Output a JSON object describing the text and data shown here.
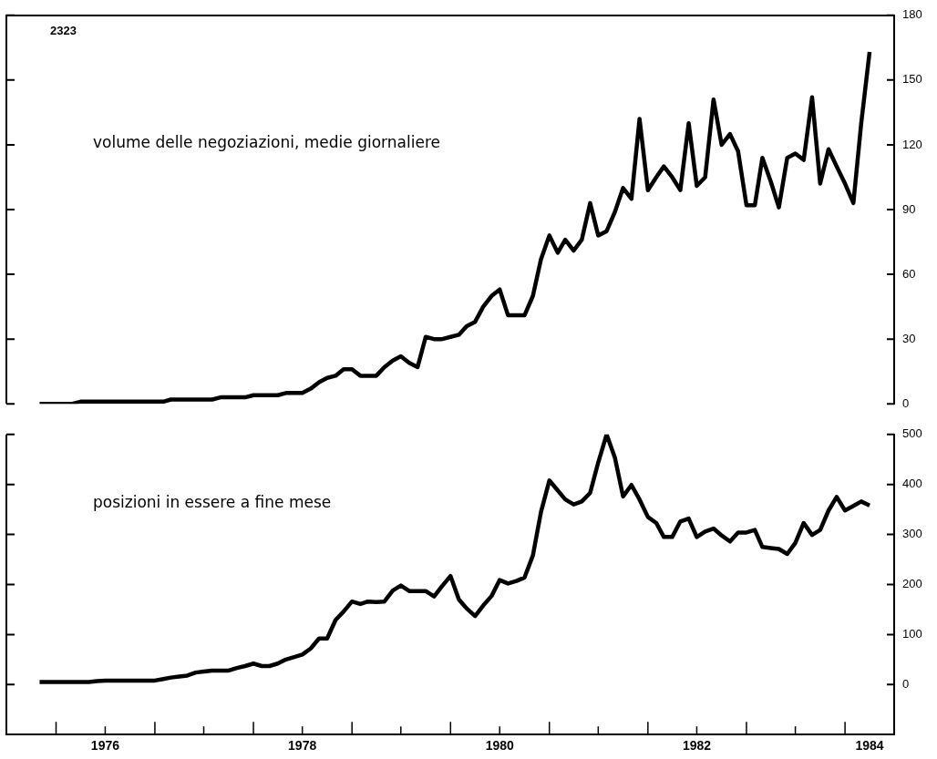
{
  "chart_data": [
    {
      "type": "line",
      "title": "volume delle negoziazioni, medie giornaliere",
      "annotations": [
        "2323"
      ],
      "x": [
        "1975-11",
        "1975-12",
        "1976-01",
        "1976-02",
        "1976-03",
        "1976-04",
        "1976-05",
        "1976-06",
        "1976-07",
        "1976-08",
        "1976-09",
        "1976-10",
        "1976-11",
        "1976-12",
        "1977-01",
        "1977-02",
        "1977-03",
        "1977-04",
        "1977-05",
        "1977-06",
        "1977-07",
        "1977-08",
        "1977-09",
        "1977-10",
        "1977-11",
        "1977-12",
        "1978-01",
        "1978-02",
        "1978-03",
        "1978-04",
        "1978-05",
        "1978-06",
        "1978-07",
        "1978-08",
        "1978-09",
        "1978-10",
        "1978-11",
        "1978-12",
        "1979-01",
        "1979-02",
        "1979-03",
        "1979-04",
        "1979-05",
        "1979-06",
        "1979-07",
        "1979-08",
        "1979-09",
        "1979-10",
        "1979-11",
        "1979-12",
        "1980-01",
        "1980-02",
        "1980-03",
        "1980-04",
        "1980-05",
        "1980-06",
        "1980-07",
        "1980-08",
        "1980-09",
        "1980-10",
        "1980-11",
        "1980-12",
        "1981-01",
        "1981-02",
        "1981-03",
        "1981-04",
        "1981-05",
        "1981-06",
        "1981-07",
        "1981-08",
        "1981-09",
        "1981-10",
        "1981-11",
        "1981-12",
        "1982-01",
        "1982-02",
        "1982-03",
        "1982-04",
        "1982-05",
        "1982-06",
        "1982-07",
        "1982-08",
        "1982-09",
        "1982-10",
        "1982-11",
        "1982-12",
        "1983-01",
        "1983-02",
        "1983-03",
        "1983-04",
        "1983-05",
        "1983-06",
        "1983-07",
        "1983-08",
        "1983-09",
        "1983-10",
        "1983-11",
        "1983-12",
        "1984-01",
        "1984-02",
        "1984-03",
        "1984-04"
      ],
      "values": [
        0,
        0,
        0,
        0,
        0,
        1,
        1,
        1,
        1,
        1,
        1,
        1,
        1,
        1,
        1,
        1,
        2,
        2,
        2,
        2,
        2,
        2,
        3,
        3,
        3,
        3,
        4,
        4,
        4,
        4,
        5,
        5,
        5,
        7,
        10,
        12,
        13,
        16,
        16,
        13,
        13,
        13,
        17,
        20,
        22,
        19,
        17,
        31,
        30,
        30,
        31,
        32,
        36,
        38,
        45,
        50,
        53,
        41,
        41,
        41,
        50,
        67,
        78,
        70,
        76,
        71,
        76,
        93,
        78,
        80,
        89,
        100,
        95,
        132,
        99,
        105,
        110,
        105,
        99,
        130,
        101,
        105,
        141,
        120,
        125,
        117,
        92,
        92,
        114,
        103,
        91,
        114,
        116,
        113,
        142,
        102,
        118,
        110,
        102,
        93,
        130,
        163
      ],
      "color": "#000000",
      "marker": "none",
      "line_style": "solid",
      "xlim": [
        "1975-07",
        "1984-07"
      ],
      "ylim": [
        0,
        180
      ],
      "yticks": [
        0,
        30,
        60,
        90,
        120,
        150,
        180
      ],
      "tick_labels": "y"
    },
    {
      "type": "line",
      "title": "posizioni in essere a fine mese",
      "x": [
        "1975-11",
        "1975-12",
        "1976-01",
        "1976-02",
        "1976-03",
        "1976-04",
        "1976-05",
        "1976-06",
        "1976-07",
        "1976-08",
        "1976-09",
        "1976-10",
        "1976-11",
        "1976-12",
        "1977-01",
        "1977-02",
        "1977-03",
        "1977-04",
        "1977-05",
        "1977-06",
        "1977-07",
        "1977-08",
        "1977-09",
        "1977-10",
        "1977-11",
        "1977-12",
        "1978-01",
        "1978-02",
        "1978-03",
        "1978-04",
        "1978-05",
        "1978-06",
        "1978-07",
        "1978-08",
        "1978-09",
        "1978-10",
        "1978-11",
        "1978-12",
        "1979-01",
        "1979-02",
        "1979-03",
        "1979-04",
        "1979-05",
        "1979-06",
        "1979-07",
        "1979-08",
        "1979-09",
        "1979-10",
        "1979-11",
        "1979-12",
        "1980-01",
        "1980-02",
        "1980-03",
        "1980-04",
        "1980-05",
        "1980-06",
        "1980-07",
        "1980-08",
        "1980-09",
        "1980-10",
        "1980-11",
        "1980-12",
        "1981-01",
        "1981-02",
        "1981-03",
        "1981-04",
        "1981-05",
        "1981-06",
        "1981-07",
        "1981-08",
        "1981-09",
        "1981-10",
        "1981-11",
        "1981-12",
        "1982-01",
        "1982-02",
        "1982-03",
        "1982-04",
        "1982-05",
        "1982-06",
        "1982-07",
        "1982-08",
        "1982-09",
        "1982-10",
        "1982-11",
        "1982-12",
        "1983-01",
        "1983-02",
        "1983-03",
        "1983-04",
        "1983-05",
        "1983-06",
        "1983-07",
        "1983-08",
        "1983-09",
        "1983-10",
        "1983-11",
        "1983-12",
        "1984-01",
        "1984-02",
        "1984-03",
        "1984-04"
      ],
      "values": [
        5,
        5,
        5,
        5,
        5,
        5,
        5,
        7,
        8,
        8,
        8,
        8,
        8,
        8,
        8,
        11,
        14,
        16,
        18,
        24,
        26,
        28,
        28,
        28,
        33,
        37,
        42,
        37,
        37,
        42,
        50,
        55,
        60,
        72,
        92,
        92,
        129,
        146,
        166,
        161,
        166,
        165,
        166,
        188,
        198,
        187,
        187,
        187,
        176,
        197,
        217,
        170,
        152,
        137,
        158,
        177,
        209,
        202,
        207,
        214,
        258,
        345,
        408,
        388,
        370,
        360,
        366,
        383,
        444,
        500,
        453,
        376,
        399,
        370,
        335,
        323,
        295,
        295,
        326,
        332,
        295,
        306,
        312,
        298,
        286,
        304,
        304,
        309,
        275,
        273,
        271,
        261,
        283,
        323,
        299,
        309,
        348,
        375,
        348,
        357,
        366,
        358
      ],
      "color": "#000000",
      "marker": "none",
      "line_style": "solid",
      "xlim": [
        "1975-07",
        "1984-07"
      ],
      "ylim": [
        -100,
        500
      ],
      "yticks": [
        0,
        100,
        200,
        300,
        400,
        500
      ],
      "xticks": [
        {
          "value": "1976-01",
          "label": null
        },
        {
          "value": "1976-07",
          "label": "1976"
        },
        {
          "value": "1977-01",
          "label": null
        },
        {
          "value": "1977-07",
          "label": null
        },
        {
          "value": "1978-01",
          "label": null
        },
        {
          "value": "1978-07",
          "label": "1978"
        },
        {
          "value": "1979-01",
          "label": null
        },
        {
          "value": "1979-07",
          "label": null
        },
        {
          "value": "1980-01",
          "label": null
        },
        {
          "value": "1980-07",
          "label": "1980"
        },
        {
          "value": "1981-01",
          "label": null
        },
        {
          "value": "1981-07",
          "label": null
        },
        {
          "value": "1982-01",
          "label": null
        },
        {
          "value": "1982-07",
          "label": "1982"
        },
        {
          "value": "1983-01",
          "label": null
        },
        {
          "value": "1983-07",
          "label": null
        },
        {
          "value": "1984-01",
          "label": null
        },
        {
          "value": "1984-04",
          "label": "1984"
        }
      ]
    }
  ]
}
